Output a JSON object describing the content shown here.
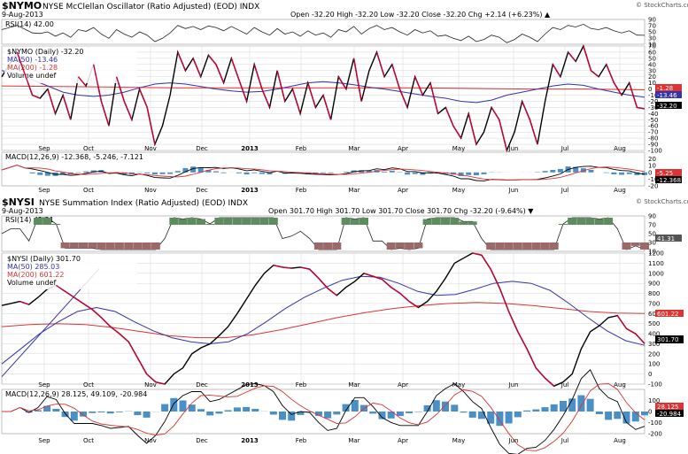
{
  "colors": {
    "price": "#000000",
    "price_down": "#cc0033",
    "ma50": "#3333aa",
    "ma200": "#dd3333",
    "rsi_fill_high": "#5e8c5e",
    "rsi_fill_low": "#9a6a6a",
    "macd_hist": "#4a90c8",
    "grid": "#d6d6d6",
    "header_bg": "#ffffff"
  },
  "top": {
    "symbol": "$NYMO",
    "title": "NYSE McClellan Oscillator (Ratio Adjusted) (EOD) INDX",
    "watermark": "© StockCharts.com",
    "date": "9-Aug-2013",
    "ohlc": "Open -32.20   High -32.20   Low -32.20   Close -32.20   Chg +2.14 (+6.23%) ▲",
    "rsi_label": "RSI(14) 42.00",
    "legend": {
      "main": "$NYMO (Daily) -32.20",
      "ma50": "MA(50) -13.46",
      "ma200": "MA(200) -1.28",
      "volume": "Volume undef"
    },
    "macd_label": "MACD(12,26,9) -12.368, -5.246, -7.121",
    "tags": {
      "ma200": "-1.28",
      "ma50": "-13.46",
      "last": "-32.20",
      "macd1": "-5.25",
      "macd2": "-12.368"
    }
  },
  "bottom": {
    "symbol": "$NYSI",
    "title": "NYSE Summation Index (Ratio Adjusted) (EOD) INDX",
    "watermark": "© StockCharts.com",
    "date": "9-Aug-2013",
    "ohlc": "Open 301.70   High 301.70   Low 301.70   Close 301.70   Chg -32.20 (-9.64%) ▼",
    "rsi_label": "RSI(14) 41.31",
    "legend": {
      "main": "$NYSI (Daily) 301.70",
      "ma50": "MA(50) 285.03",
      "ma200": "MA(200) 601.22",
      "volume": "Volume undef"
    },
    "macd_label": "MACD(12,26,9) 28.125, 49.109, -20.984",
    "tags": {
      "rsi": "41.31",
      "ma200": "601.22",
      "last": "301.70",
      "macd1": "28.125",
      "macd2": "-20.984"
    }
  },
  "chart_data": [
    {
      "type": "line",
      "title": "$NYMO NYSE McClellan Oscillator (Ratio Adjusted) (EOD) INDX",
      "x_labels": [
        "Sep",
        "Oct",
        "Nov",
        "Dec",
        "2013",
        "Feb",
        "Mar",
        "Apr",
        "May",
        "Jun",
        "Jul",
        "Aug"
      ],
      "ylim": [
        -100,
        70
      ],
      "yticks": [
        70,
        60,
        50,
        40,
        30,
        20,
        10,
        0,
        -10,
        -20,
        -30,
        -40,
        -50,
        -60,
        -70,
        -80,
        -90,
        -100
      ],
      "series": [
        {
          "name": "$NYMO (Daily) -32.20",
          "values": [
            20,
            40,
            60,
            25,
            -10,
            -15,
            0,
            -40,
            -10,
            -50,
            20,
            5,
            40,
            -20,
            -60,
            20,
            -20,
            -50,
            0,
            -30,
            -90,
            -60,
            -10,
            60,
            30,
            50,
            20,
            55,
            40,
            10,
            50,
            15,
            -20,
            40,
            0,
            -30,
            30,
            -20,
            0,
            -40,
            10,
            -30,
            -10,
            -50,
            20,
            0,
            50,
            -20,
            30,
            60,
            20,
            40,
            0,
            -30,
            20,
            -10,
            10,
            -40,
            -30,
            -60,
            -80,
            -40,
            -90,
            -70,
            -30,
            -50,
            -100,
            -70,
            -20,
            -50,
            -90,
            -20,
            40,
            20,
            60,
            45,
            70,
            30,
            20,
            40,
            10,
            -10,
            10,
            -30,
            -32.2
          ]
        },
        {
          "name": "MA(50) -13.46",
          "values": [
            30,
            25,
            15,
            5,
            -5,
            -10,
            -12,
            -10,
            -5,
            2,
            8,
            10,
            8,
            4,
            0,
            -3,
            -5,
            -4,
            0,
            5,
            10,
            12,
            10,
            7,
            3,
            0,
            -4,
            -8,
            -12,
            -15,
            -20,
            -22,
            -18,
            -10,
            -5,
            0,
            5,
            8,
            6,
            0,
            -5,
            -10,
            -13.46
          ]
        },
        {
          "name": "MA(200) -1.28",
          "values": [
            5,
            4,
            3,
            2,
            2,
            2,
            2,
            2,
            1,
            0,
            0,
            -1.28
          ]
        }
      ],
      "rsi": {
        "label": "RSI(14) 42.00",
        "ylim": [
          10,
          90
        ],
        "yticks": [
          90,
          70,
          50,
          30,
          10
        ]
      },
      "macd": {
        "label": "MACD(12,26,9) -12.368, -5.246, -7.121",
        "ylim": [
          -20,
          30
        ],
        "yticks": [
          20,
          10,
          0,
          -10,
          -20
        ]
      }
    },
    {
      "type": "line",
      "title": "$NYSI NYSE Summation Index (Ratio Adjusted) (EOD) INDX",
      "x_labels": [
        "Sep",
        "Oct",
        "Nov",
        "Dec",
        "2013",
        "Feb",
        "Mar",
        "Apr",
        "May",
        "Jun",
        "Jul",
        "Aug"
      ],
      "ylim": [
        -100,
        1200
      ],
      "yticks": [
        1200,
        1100,
        1000,
        900,
        800,
        700,
        600,
        500,
        400,
        300,
        200,
        100,
        0,
        -100
      ],
      "series": [
        {
          "name": "$NYSI (Daily) 301.70",
          "values": [
            680,
            700,
            720,
            690,
            760,
            840,
            880,
            820,
            760,
            700,
            640,
            560,
            470,
            400,
            320,
            160,
            0,
            -80,
            -100,
            0,
            60,
            200,
            260,
            300,
            380,
            470,
            600,
            740,
            880,
            1000,
            1080,
            1060,
            1050,
            1060,
            1040,
            950,
            850,
            780,
            860,
            920,
            1000,
            970,
            940,
            860,
            800,
            720,
            660,
            720,
            820,
            950,
            1100,
            1150,
            1200,
            1180,
            1040,
            850,
            620,
            420,
            250,
            60,
            -40,
            -120,
            -80,
            0,
            250,
            420,
            480,
            560,
            580,
            450,
            400,
            301.7
          ]
        },
        {
          "name": "MA(50) 285.03",
          "values": [
            100,
            250,
            400,
            520,
            620,
            660,
            620,
            520,
            430,
            360,
            320,
            300,
            320,
            400,
            520,
            650,
            760,
            850,
            930,
            970,
            960,
            900,
            820,
            780,
            790,
            840,
            900,
            920,
            900,
            830,
            700,
            560,
            430,
            330,
            285.03
          ]
        },
        {
          "name": "MA(200) 601.22",
          "values": [
            470,
            490,
            500,
            490,
            460,
            420,
            380,
            360,
            360,
            390,
            440,
            500,
            560,
            610,
            650,
            680,
            700,
            710,
            700,
            680,
            650,
            620,
            605,
            601.22
          ]
        }
      ],
      "trendline": {
        "from": [
          -30,
          500
        ],
        "to": [
          2,
          870
        ]
      },
      "rsi": {
        "label": "RSI(14) 41.31",
        "ylim": [
          10,
          90
        ],
        "yticks": [
          90,
          70,
          50,
          30,
          10
        ]
      },
      "macd": {
        "label": "MACD(12,26,9) 28.125, 49.109, -20.984",
        "ylim": [
          -200,
          200
        ],
        "yticks": [
          100,
          0,
          -100,
          -200
        ]
      }
    }
  ]
}
